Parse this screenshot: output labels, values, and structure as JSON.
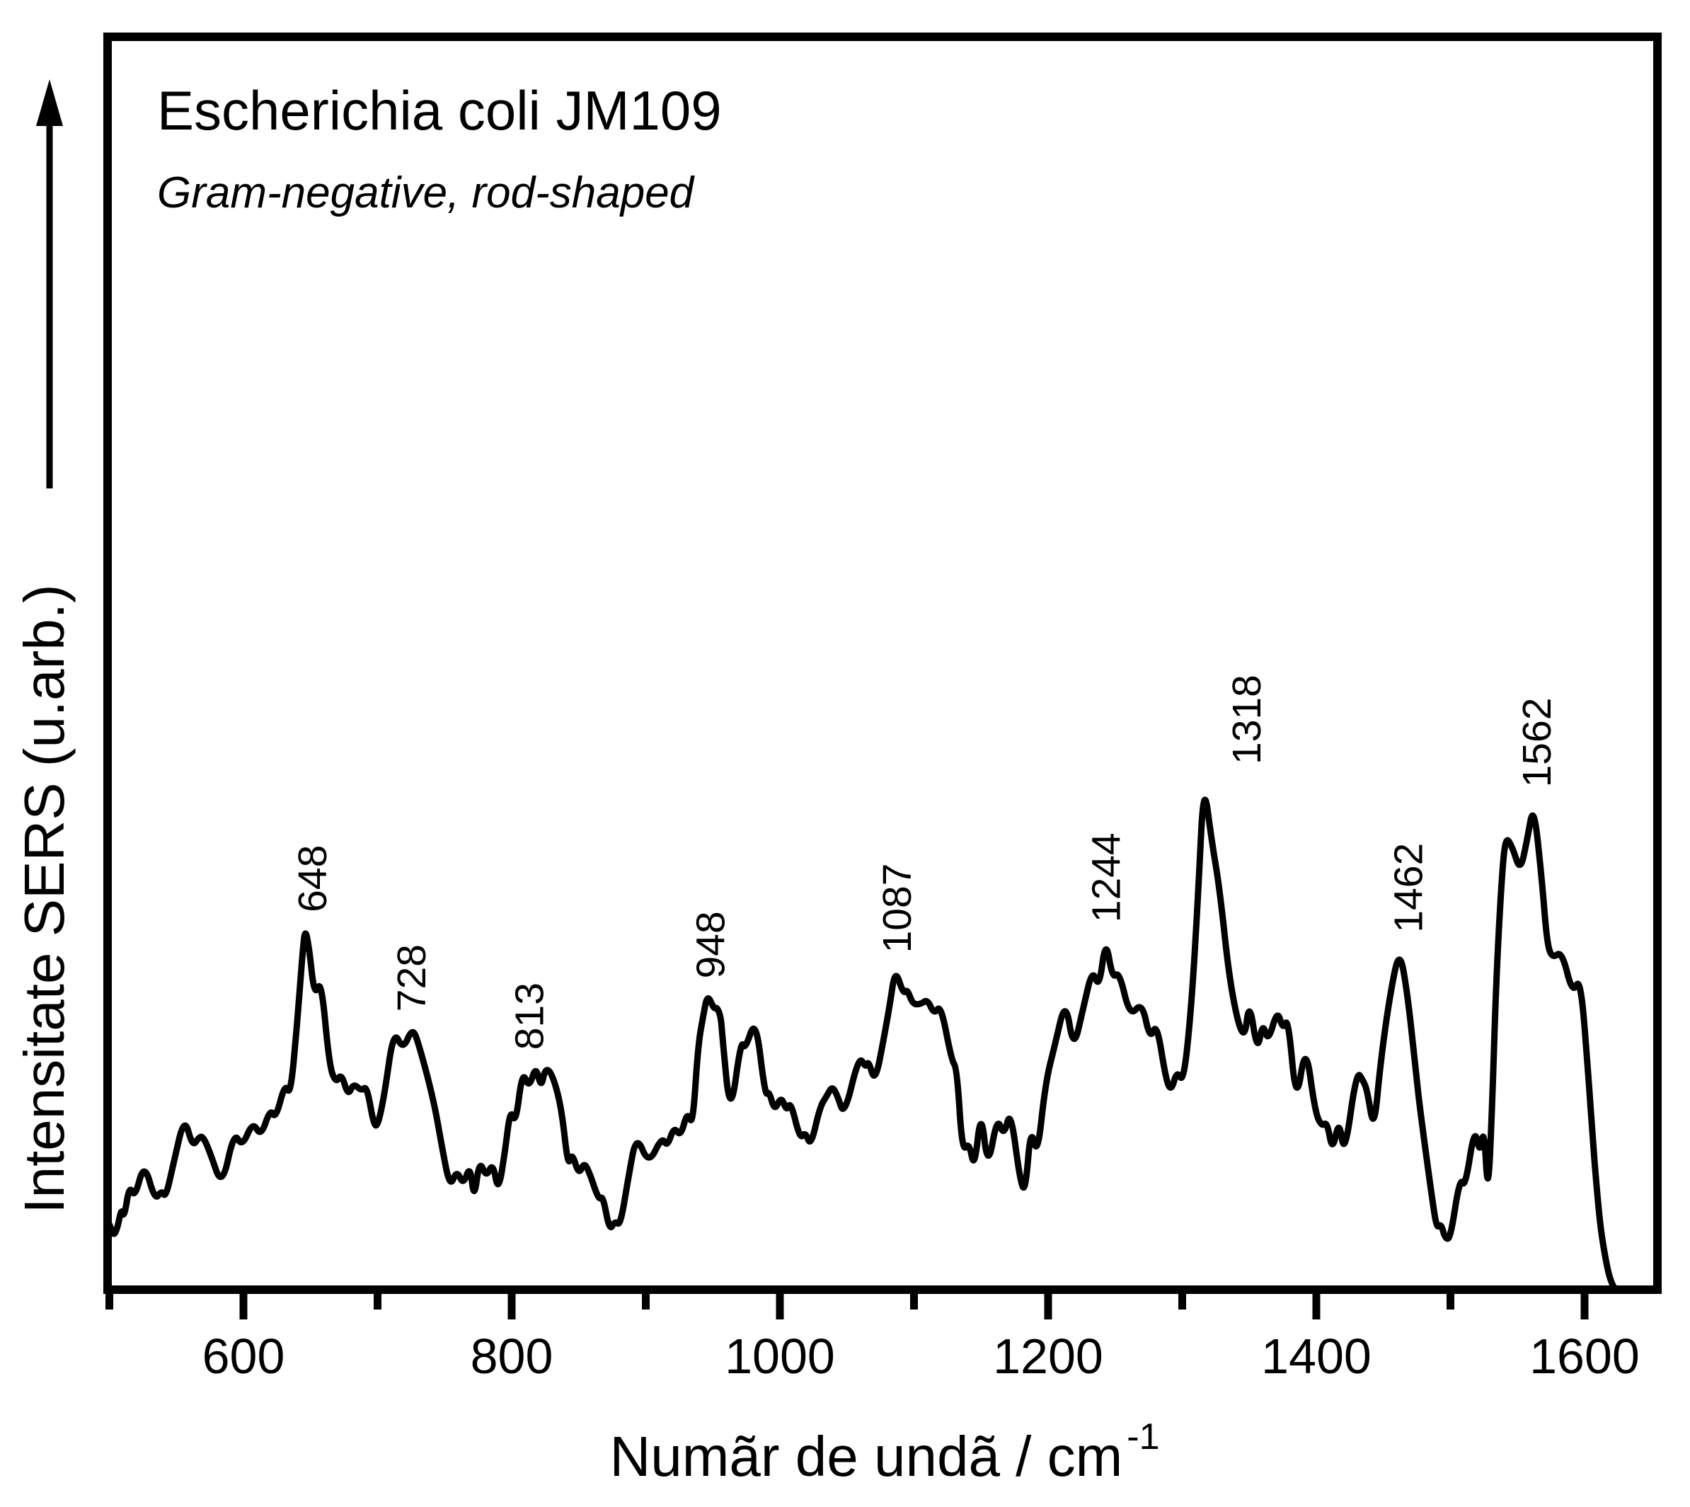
{
  "chart_data": {
    "type": "line",
    "title": "Escherichia coli JM109",
    "subtitle": "Gram-negative, rod-shaped",
    "xlabel_main": "Numãr de undã / cm",
    "xlabel_superscript": "-1",
    "ylabel": "Intensitate SERS (u.arb.)",
    "x_range": [
      498,
      1654
    ],
    "y_range": [
      0,
      110
    ],
    "grid": false,
    "legend": "none",
    "line_color": "#000000",
    "subtitle_color": "#0000EE",
    "x_major_ticks": [
      600,
      800,
      1000,
      1200,
      1400,
      1600
    ],
    "x_minor_ticks": [
      500,
      700,
      900,
      1100,
      1300,
      1500
    ],
    "peak_labels": [
      {
        "text": "648",
        "cm": 646,
        "intensity": 71,
        "dx": 8
      },
      {
        "text": "728",
        "cm": 726,
        "intensity": 51.5,
        "dx": -4
      },
      {
        "text": "813",
        "cm": 812,
        "intensity": 44,
        "dx": 0
      },
      {
        "text": "948",
        "cm": 946,
        "intensity": 58,
        "dx": 2
      },
      {
        "text": "1087",
        "cm": 1086,
        "intensity": 63,
        "dx": 0
      },
      {
        "text": "1244",
        "cm": 1243,
        "intensity": 69,
        "dx": -2
      },
      {
        "text": "1318",
        "cm": 1316,
        "intensity": 100,
        "dx": 58
      },
      {
        "text": "1462",
        "cm": 1462,
        "intensity": 67,
        "dx": 10
      },
      {
        "text": "1562",
        "cm": 1562,
        "intensity": 95.5,
        "dx": 2
      }
    ],
    "points": [
      [
        498.5,
        13.5
      ],
      [
        500,
        13
      ],
      [
        503,
        10.5
      ],
      [
        506,
        12
      ],
      [
        509,
        16
      ],
      [
        511,
        14
      ],
      [
        515,
        20.5
      ],
      [
        519,
        18
      ],
      [
        526,
        25
      ],
      [
        534,
        17.5
      ],
      [
        539,
        19.5
      ],
      [
        542,
        18
      ],
      [
        548,
        25
      ],
      [
        556,
        34
      ],
      [
        562,
        28
      ],
      [
        567,
        30
      ],
      [
        570,
        30
      ],
      [
        575,
        27
      ],
      [
        584,
        20
      ],
      [
        593,
        31
      ],
      [
        599,
        28
      ],
      [
        607,
        33
      ],
      [
        613,
        30
      ],
      [
        620,
        35.5
      ],
      [
        624,
        33.5
      ],
      [
        631,
        40.5
      ],
      [
        635,
        38
      ],
      [
        640,
        52
      ],
      [
        644,
        66
      ],
      [
        646,
        71
      ],
      [
        649,
        67
      ],
      [
        653,
        57.5
      ],
      [
        658,
        61
      ],
      [
        664,
        44
      ],
      [
        669,
        40.5
      ],
      [
        673,
        42.5
      ],
      [
        678,
        38
      ],
      [
        682,
        40.5
      ],
      [
        688,
        39
      ],
      [
        692,
        40
      ],
      [
        697,
        32.5
      ],
      [
        700,
        32
      ],
      [
        705,
        38
      ],
      [
        712,
        51
      ],
      [
        719,
        47
      ],
      [
        726,
        51.5
      ],
      [
        731,
        48
      ],
      [
        742,
        37
      ],
      [
        748,
        28
      ],
      [
        754,
        20
      ],
      [
        759,
        23.5
      ],
      [
        764,
        20.5
      ],
      [
        769,
        24.5
      ],
      [
        772,
        17.5
      ],
      [
        776,
        25.5
      ],
      [
        781,
        22
      ],
      [
        786,
        25
      ],
      [
        790,
        19
      ],
      [
        795,
        27
      ],
      [
        799,
        35.5
      ],
      [
        803,
        32.5
      ],
      [
        808,
        43
      ],
      [
        813,
        39.5
      ],
      [
        818,
        44
      ],
      [
        822,
        39.5
      ],
      [
        825,
        43.5
      ],
      [
        830,
        42.5
      ],
      [
        837,
        36
      ],
      [
        842,
        24
      ],
      [
        845,
        27
      ],
      [
        850,
        22.5
      ],
      [
        854,
        25
      ],
      [
        858,
        23
      ],
      [
        865,
        17.5
      ],
      [
        868,
        18.5
      ],
      [
        873,
        11.5
      ],
      [
        877,
        13.5
      ],
      [
        881,
        12.5
      ],
      [
        887,
        22
      ],
      [
        893,
        30.5
      ],
      [
        902,
        24.5
      ],
      [
        912,
        30
      ],
      [
        916,
        28
      ],
      [
        921,
        32
      ],
      [
        926,
        30
      ],
      [
        931,
        35
      ],
      [
        935,
        32
      ],
      [
        939,
        48
      ],
      [
        943,
        54
      ],
      [
        946,
        58
      ],
      [
        951,
        55
      ],
      [
        953,
        55.5
      ],
      [
        956,
        53.5
      ],
      [
        957,
        50
      ],
      [
        963,
        33.5
      ],
      [
        971,
        49
      ],
      [
        974,
        47
      ],
      [
        982,
        53.5
      ],
      [
        989,
        38
      ],
      [
        992,
        39
      ],
      [
        996,
        35
      ],
      [
        1001,
        38
      ],
      [
        1005,
        35
      ],
      [
        1008,
        37
      ],
      [
        1015,
        29.5
      ],
      [
        1019,
        31
      ],
      [
        1023,
        28
      ],
      [
        1030,
        36
      ],
      [
        1035,
        38
      ],
      [
        1039,
        40
      ],
      [
        1043,
        38
      ],
      [
        1048,
        34
      ],
      [
        1059,
        46
      ],
      [
        1064,
        43.5
      ],
      [
        1066,
        45
      ],
      [
        1071,
        40.5
      ],
      [
        1078,
        50
      ],
      [
        1082,
        56
      ],
      [
        1086,
        63
      ],
      [
        1092,
        58
      ],
      [
        1095,
        59
      ],
      [
        1099,
        56
      ],
      [
        1105,
        56
      ],
      [
        1110,
        57
      ],
      [
        1115,
        54
      ],
      [
        1120,
        56
      ],
      [
        1128,
        45
      ],
      [
        1132,
        43.5
      ],
      [
        1136,
        27
      ],
      [
        1141,
        29
      ],
      [
        1145,
        23.5
      ],
      [
        1150,
        35.5
      ],
      [
        1155,
        23.5
      ],
      [
        1162,
        34
      ],
      [
        1167,
        30
      ],
      [
        1172,
        35.5
      ],
      [
        1179,
        21.5
      ],
      [
        1183,
        19
      ],
      [
        1187,
        32
      ],
      [
        1192,
        26
      ],
      [
        1198,
        40.5
      ],
      [
        1205,
        48
      ],
      [
        1213,
        57
      ],
      [
        1219,
        47
      ],
      [
        1226,
        55
      ],
      [
        1233,
        63
      ],
      [
        1238,
        59
      ],
      [
        1243,
        69
      ],
      [
        1248,
        61
      ],
      [
        1253,
        62.5
      ],
      [
        1261,
        53.5
      ],
      [
        1270,
        56.5
      ],
      [
        1276,
        49
      ],
      [
        1281,
        52.5
      ],
      [
        1288,
        41
      ],
      [
        1292,
        39
      ],
      [
        1296,
        43
      ],
      [
        1301,
        40.5
      ],
      [
        1307,
        56
      ],
      [
        1312,
        78
      ],
      [
        1316,
        100
      ],
      [
        1322,
        88
      ],
      [
        1328,
        78.5
      ],
      [
        1336,
        59
      ],
      [
        1346,
        48
      ],
      [
        1350,
        57
      ],
      [
        1356,
        46.5
      ],
      [
        1360,
        52.5
      ],
      [
        1364,
        48.5
      ],
      [
        1371,
        55
      ],
      [
        1375,
        51
      ],
      [
        1379,
        53.5
      ],
      [
        1385,
        36
      ],
      [
        1392,
        48.5
      ],
      [
        1399,
        35
      ],
      [
        1404,
        32
      ],
      [
        1408,
        33
      ],
      [
        1412,
        27
      ],
      [
        1417,
        33.5
      ],
      [
        1421,
        26
      ],
      [
        1430,
        43
      ],
      [
        1435,
        41
      ],
      [
        1438,
        39
      ],
      [
        1443,
        31
      ],
      [
        1448,
        45
      ],
      [
        1455,
        58
      ],
      [
        1462,
        67
      ],
      [
        1468,
        58
      ],
      [
        1474,
        43.5
      ],
      [
        1477,
        36
      ],
      [
        1487,
        16.5
      ],
      [
        1490,
        12
      ],
      [
        1493,
        13
      ],
      [
        1496,
        10
      ],
      [
        1500,
        10
      ],
      [
        1507,
        22
      ],
      [
        1511,
        20
      ],
      [
        1518,
        32
      ],
      [
        1522,
        26.5
      ],
      [
        1525,
        32
      ],
      [
        1528,
        18
      ],
      [
        1531,
        35
      ],
      [
        1534,
        60
      ],
      [
        1538,
        80
      ],
      [
        1541,
        89
      ],
      [
        1546,
        87
      ],
      [
        1552,
        82
      ],
      [
        1557,
        88
      ],
      [
        1562,
        95.5
      ],
      [
        1568,
        81
      ],
      [
        1572,
        68
      ],
      [
        1576,
        65
      ],
      [
        1583,
        66.5
      ],
      [
        1591,
        58
      ],
      [
        1597,
        61.5
      ],
      [
        1603,
        41.5
      ],
      [
        1606,
        30
      ],
      [
        1609,
        20
      ],
      [
        1612,
        12
      ],
      [
        1615,
        7
      ],
      [
        1618,
        3
      ],
      [
        1621,
        0.8
      ],
      [
        1623,
        0.2
      ]
    ]
  }
}
